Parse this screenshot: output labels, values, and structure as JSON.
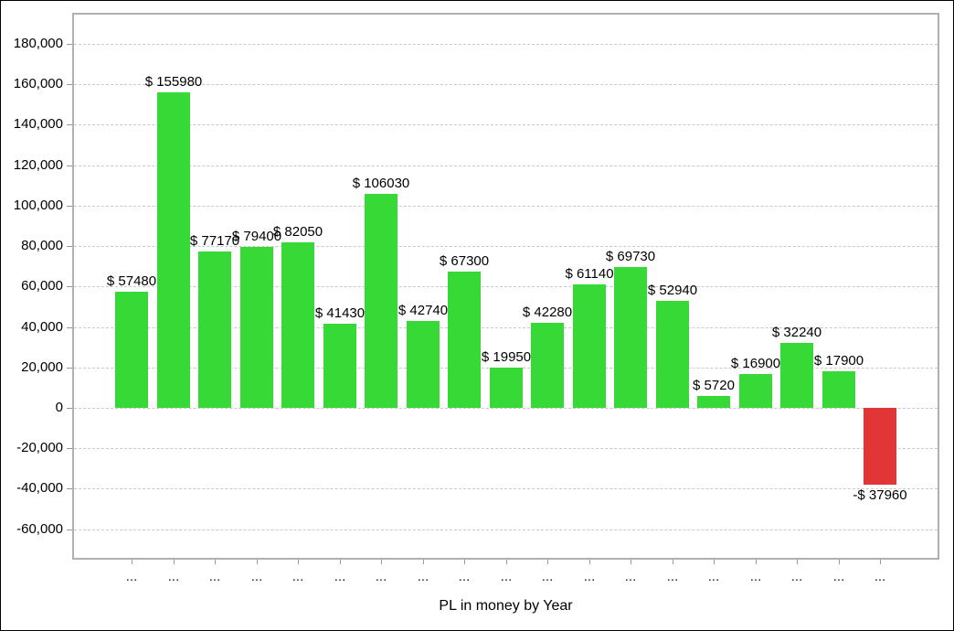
{
  "chart_data": {
    "type": "bar",
    "title": "PL in money by Year",
    "xlabel": "PL in money by Year",
    "ylabel": "",
    "legend": "none",
    "grid": "horizontal-dashed",
    "ylim": [
      -75000,
      195000
    ],
    "ytick_step": 20000,
    "ytick_values": [
      180000,
      160000,
      140000,
      120000,
      100000,
      80000,
      60000,
      40000,
      20000,
      0,
      -20000,
      -40000,
      -60000
    ],
    "ytick_labels": [
      "180,000",
      "160,000",
      "140,000",
      "120,000",
      "100,000",
      "80,000",
      "60,000",
      "40,000",
      "20,000",
      "0",
      "-20,000",
      "-40,000",
      "-60,000"
    ],
    "categories": [
      "...",
      "...",
      "...",
      "...",
      "...",
      "...",
      "...",
      "...",
      "...",
      "...",
      "...",
      "...",
      "...",
      "...",
      "...",
      "...",
      "...",
      "...",
      "..."
    ],
    "values": [
      57480,
      155980,
      77170,
      79400,
      82050,
      41430,
      106030,
      42740,
      67300,
      19950,
      42280,
      61140,
      69730,
      52940,
      5720,
      16900,
      32240,
      17900,
      -37960
    ],
    "bar_labels": [
      "$ 57480",
      "$ 155980",
      "$ 77170",
      "$ 79400",
      "$ 82050",
      "$ 41430",
      "$ 106030",
      "$ 42740",
      "$ 67300",
      "$ 19950",
      "$ 42280",
      "$ 61140",
      "$ 69730",
      "$ 52940",
      "$ 5720",
      "$ 16900",
      "$ 32240",
      "$ 17900",
      "-$ 37960"
    ],
    "colors": {
      "positive_bar": "#36d936",
      "negative_bar": "#e23535",
      "frame": "#b0b0b0",
      "gridline": "#c9c9c9",
      "tick": "#9a9a9a",
      "text": "#000000",
      "background": "#ffffff"
    }
  }
}
